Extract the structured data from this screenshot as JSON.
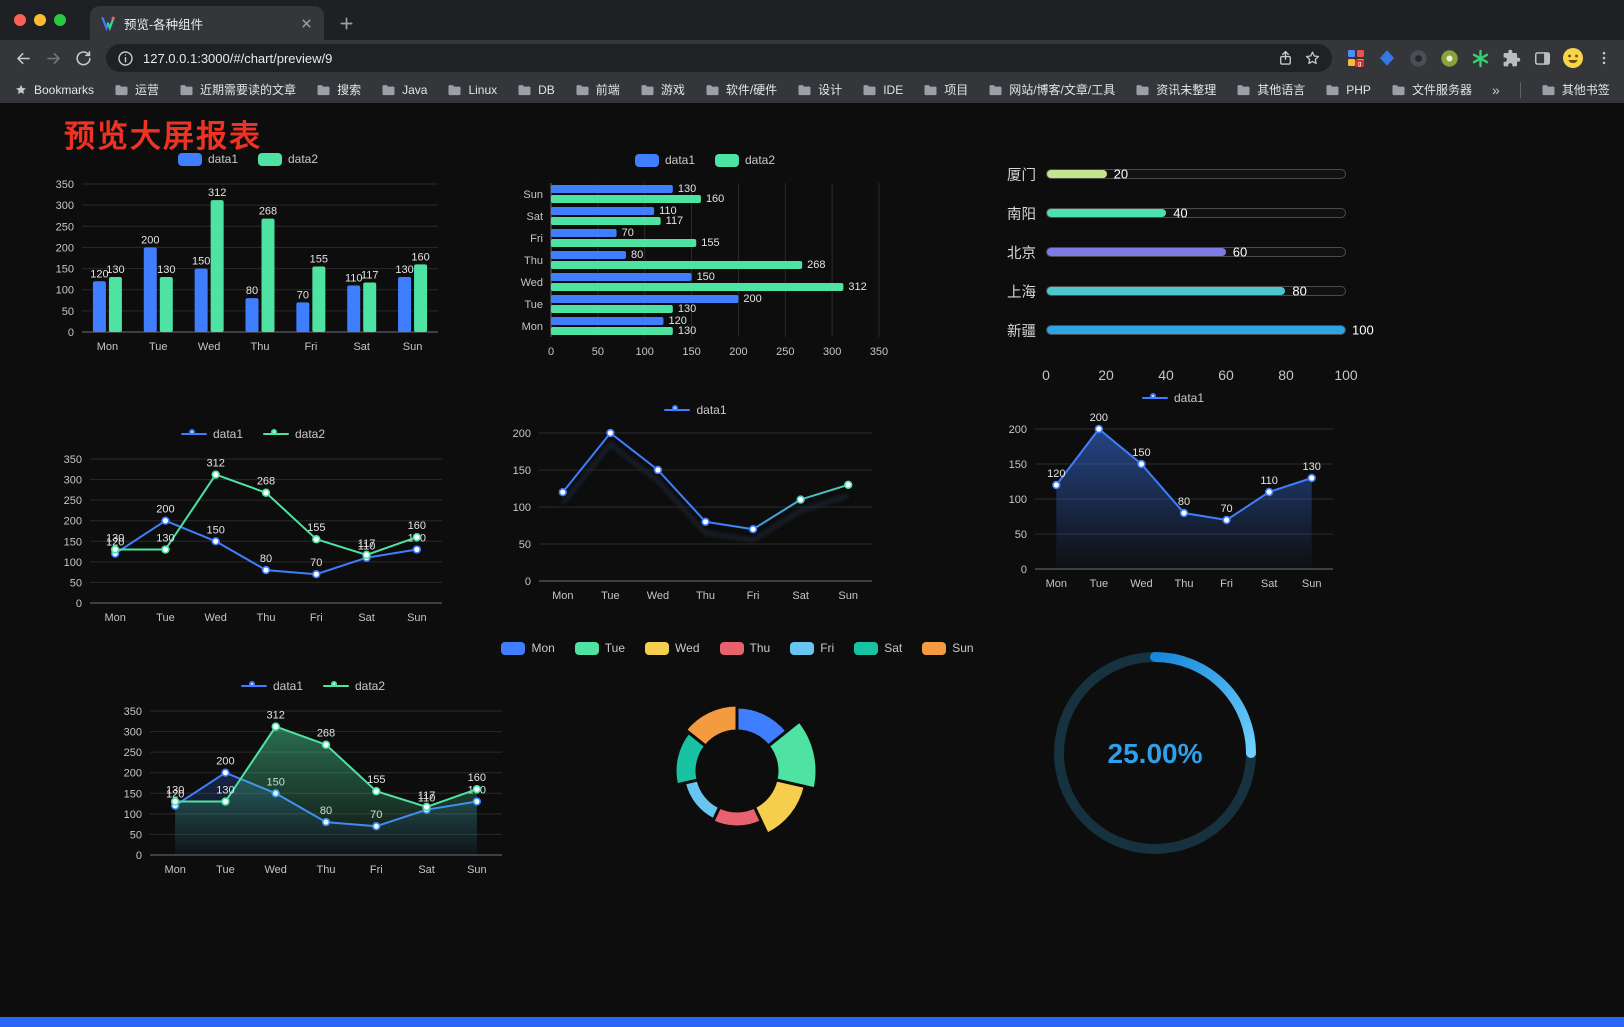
{
  "colors": {
    "page_bg": "#0d0d0d",
    "title": "#EE3224",
    "footer_bar": "#2A66F7",
    "traffic_lights": [
      "#FF5F57",
      "#FEBC2E",
      "#28C840"
    ],
    "data1_blue": "#3E7EFF",
    "data2_green": "#4EE3A2"
  },
  "browser": {
    "tab_title": "预览-各种组件",
    "url": "127.0.0.1:3000/#/chart/preview/9",
    "bookmarks_bar": {
      "root_label": "Bookmarks",
      "folders": [
        "运营",
        "近期需要读的文章",
        "搜索",
        "Java",
        "Linux",
        "DB",
        "前端",
        "游戏",
        "软件/硬件",
        "设计",
        "IDE",
        "项目",
        "网站/博客/文章/工具",
        "资讯未整理",
        "其他语言",
        "PHP",
        "文件服务器"
      ],
      "overflow": "»",
      "other_label": "其他书签"
    }
  },
  "page": {
    "title": "预览大屏报表"
  },
  "chart_data": [
    {
      "id": "grouped-bar",
      "type": "bar",
      "categories": [
        "Mon",
        "Tue",
        "Wed",
        "Thu",
        "Fri",
        "Sat",
        "Sun"
      ],
      "series": [
        {
          "name": "data1",
          "color": "#3E7EFF",
          "values": [
            120,
            200,
            150,
            80,
            70,
            110,
            130
          ]
        },
        {
          "name": "data2",
          "color": "#4EE3A2",
          "values": [
            130,
            130,
            312,
            268,
            155,
            117,
            160
          ]
        }
      ],
      "ylim": [
        0,
        350
      ],
      "tick_step": 50,
      "legend_position": "top",
      "grid": true
    },
    {
      "id": "grouped-hbar",
      "type": "bar",
      "orientation": "horizontal",
      "categories": [
        "Mon",
        "Tue",
        "Wed",
        "Thu",
        "Fri",
        "Sat",
        "Sun"
      ],
      "series": [
        {
          "name": "data1",
          "color": "#3E7EFF",
          "values": [
            120,
            200,
            150,
            80,
            70,
            110,
            130
          ]
        },
        {
          "name": "data2",
          "color": "#4EE3A2",
          "values": [
            130,
            130,
            312,
            268,
            155,
            117,
            160
          ]
        }
      ],
      "xlim": [
        0,
        350
      ],
      "tick_step": 50,
      "legend_position": "top",
      "grid": true
    },
    {
      "id": "city-progress",
      "type": "bar",
      "subtype": "progress",
      "rows": [
        {
          "label": "厦门",
          "value": 20,
          "color": "#C5E48F"
        },
        {
          "label": "南阳",
          "value": 40,
          "color": "#4BE0AD"
        },
        {
          "label": "北京",
          "value": 60,
          "color": "#7F7BE4"
        },
        {
          "label": "上海",
          "value": 80,
          "color": "#4EC5CF"
        },
        {
          "label": "新疆",
          "value": 100,
          "color": "#2EA3E6"
        }
      ],
      "xlim": [
        0,
        100
      ],
      "xticks": [
        0,
        20,
        40,
        60,
        80,
        100
      ]
    },
    {
      "id": "line-two",
      "type": "line",
      "categories": [
        "Mon",
        "Tue",
        "Wed",
        "Thu",
        "Fri",
        "Sat",
        "Sun"
      ],
      "series": [
        {
          "name": "data1",
          "color": "#3E7EFF",
          "values": [
            120,
            200,
            150,
            80,
            70,
            110,
            130
          ]
        },
        {
          "name": "data2",
          "color": "#4EE3A2",
          "values": [
            130,
            130,
            312,
            268,
            155,
            117,
            160
          ]
        }
      ],
      "ylim": [
        0,
        350
      ],
      "tick_step": 50,
      "show_labels": true,
      "legend_position": "top"
    },
    {
      "id": "line-gradient",
      "type": "line",
      "categories": [
        "Mon",
        "Tue",
        "Wed",
        "Thu",
        "Fri",
        "Sat",
        "Sun"
      ],
      "series": [
        {
          "name": "data1",
          "color": "#3E7EFF",
          "gradient_to": "#4EE3A2",
          "values": [
            120,
            200,
            150,
            80,
            70,
            110,
            130
          ]
        }
      ],
      "ylim": [
        0,
        200
      ],
      "tick_step": 50,
      "show_labels": false,
      "legend_position": "top"
    },
    {
      "id": "area-one",
      "type": "area",
      "categories": [
        "Mon",
        "Tue",
        "Wed",
        "Thu",
        "Fri",
        "Sat",
        "Sun"
      ],
      "series": [
        {
          "name": "data1",
          "color": "#3E7EFF",
          "area": true,
          "values": [
            120,
            200,
            150,
            80,
            70,
            110,
            130
          ]
        }
      ],
      "ylim": [
        0,
        200
      ],
      "tick_step": 50,
      "show_labels": true,
      "legend_position": "top"
    },
    {
      "id": "area-two",
      "type": "area",
      "categories": [
        "Mon",
        "Tue",
        "Wed",
        "Thu",
        "Fri",
        "Sat",
        "Sun"
      ],
      "series": [
        {
          "name": "data1",
          "color": "#3E7EFF",
          "area": true,
          "values": [
            120,
            200,
            150,
            80,
            70,
            110,
            130
          ]
        },
        {
          "name": "data2",
          "color": "#4EE3A2",
          "area": true,
          "values": [
            130,
            130,
            312,
            268,
            155,
            117,
            160
          ]
        }
      ],
      "ylim": [
        0,
        350
      ],
      "tick_step": 50,
      "show_labels": true,
      "legend_position": "top"
    },
    {
      "id": "rose-pie",
      "type": "pie",
      "subtype": "rose",
      "categories": [
        "Mon",
        "Tue",
        "Wed",
        "Thu",
        "Fri",
        "Sat",
        "Sun"
      ],
      "values": [
        120,
        200,
        150,
        80,
        70,
        110,
        130
      ],
      "colors": [
        "#3E7EFF",
        "#4EE3A2",
        "#F6CE4D",
        "#E7616F",
        "#67C6F0",
        "#17C3A3",
        "#F49B3F"
      ],
      "legend_position": "top"
    },
    {
      "id": "gauge",
      "type": "gauge",
      "value": 25,
      "label": "25.00%",
      "color_start": "#1787D9",
      "color_end": "#6FD0FF",
      "track_color": "#16323E",
      "text_color": "#2E9FE8"
    }
  ]
}
